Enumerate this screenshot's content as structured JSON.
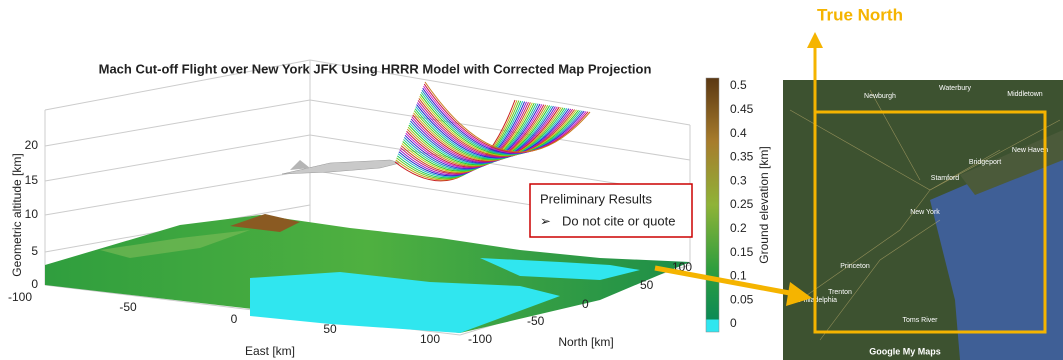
{
  "plot": {
    "title": "Mach Cut-off Flight over New York JFK Using HRRR Model with Corrected Map Projection",
    "z_label": "Geometric altitude [km]",
    "x_label": "East [km]",
    "y_label": "North [km]",
    "z_ticks": [
      "20",
      "15",
      "10",
      "5",
      "0"
    ],
    "x_ticks": [
      "-100",
      "-50",
      "0",
      "50",
      "100"
    ],
    "y_ticks": [
      "-100",
      "-50",
      "0",
      "50",
      "100"
    ],
    "colorbar_label": "Ground elevation [km]",
    "colorbar_ticks": [
      "0.5",
      "0.45",
      "0.4",
      "0.35",
      "0.3",
      "0.25",
      "0.2",
      "0.15",
      "0.1",
      "0.05",
      "0"
    ]
  },
  "notice": {
    "title": "Preliminary Results",
    "item": "Do not cite or quote"
  },
  "map": {
    "heading": "True North",
    "places": [
      "Waterbury",
      "Newburgh",
      "Middletown",
      "New Haven",
      "Bridgeport",
      "Stamford",
      "New York",
      "Princeton",
      "Trenton",
      "Philadelphia",
      "Toms River"
    ],
    "credit": "Google My Maps"
  }
}
